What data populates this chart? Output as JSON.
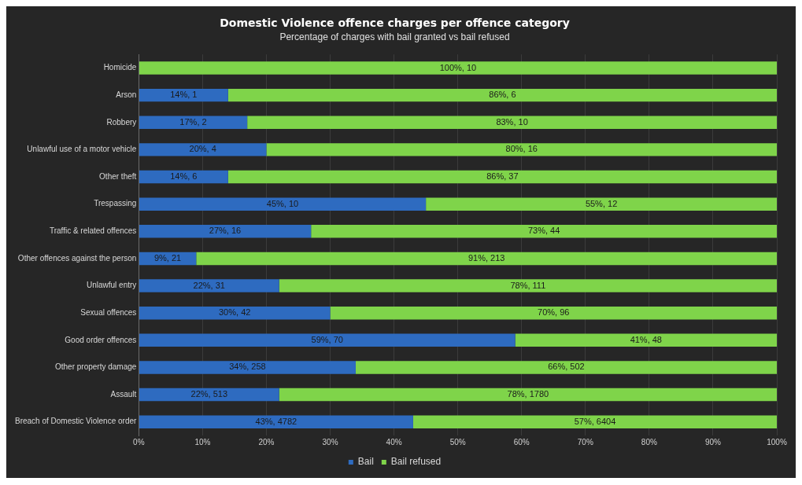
{
  "chart_data": {
    "type": "bar",
    "orientation": "horizontal",
    "stacked": true,
    "title": "Domestic Violence offence charges per offence category",
    "subtitle": "Percentage of charges with bail granted vs bail refused",
    "categories": [
      "Homicide",
      "Arson",
      "Robbery",
      "Unlawful use of a motor vehicle",
      "Other theft",
      "Trespassing",
      "Traffic & related offences",
      "Other offences against the person",
      "Unlawful entry",
      "Sexual offences",
      "Good order offences",
      "Other property damage",
      "Assault",
      "Breach of Domestic Violence order"
    ],
    "series": [
      {
        "name": "Bail",
        "color": "#2e6bc0",
        "values": [
          0,
          14,
          17,
          20,
          14,
          45,
          27,
          9,
          22,
          30,
          59,
          34,
          22,
          43
        ],
        "value_labels": [
          null,
          "14%, 1",
          "17%, 2",
          "20%, 4",
          "14%, 6",
          "45%, 10",
          "27%, 16",
          "9%, 21",
          "22%, 31",
          "30%, 42",
          "59%, 70",
          "34%, 258",
          "22%, 513",
          "43%, 4782"
        ]
      },
      {
        "name": "Bail refused",
        "color": "#7fd44a",
        "values": [
          100,
          86,
          83,
          80,
          86,
          55,
          73,
          91,
          78,
          70,
          41,
          66,
          78,
          57
        ],
        "value_labels": [
          "100%, 10",
          "86%, 6",
          "83%, 10",
          "80%, 16",
          "86%, 37",
          "55%, 12",
          "73%, 44",
          "91%, 213",
          "78%, 111",
          "70%, 96",
          "41%, 48",
          "66%, 502",
          "78%, 1780",
          "57%, 6404"
        ]
      }
    ],
    "xlim": [
      0,
      100
    ],
    "xticks": [
      {
        "value": 0,
        "label": "0%"
      },
      {
        "value": 10,
        "label": "10%"
      },
      {
        "value": 20,
        "label": "20%"
      },
      {
        "value": 30,
        "label": "30%"
      },
      {
        "value": 40,
        "label": "40%"
      },
      {
        "value": 50,
        "label": "50%"
      },
      {
        "value": 60,
        "label": "60%"
      },
      {
        "value": 70,
        "label": "70%"
      },
      {
        "value": 80,
        "label": "80%"
      },
      {
        "value": 90,
        "label": "90%"
      },
      {
        "value": 100,
        "label": "100%"
      }
    ],
    "grid": "x",
    "legend": "bottom"
  }
}
